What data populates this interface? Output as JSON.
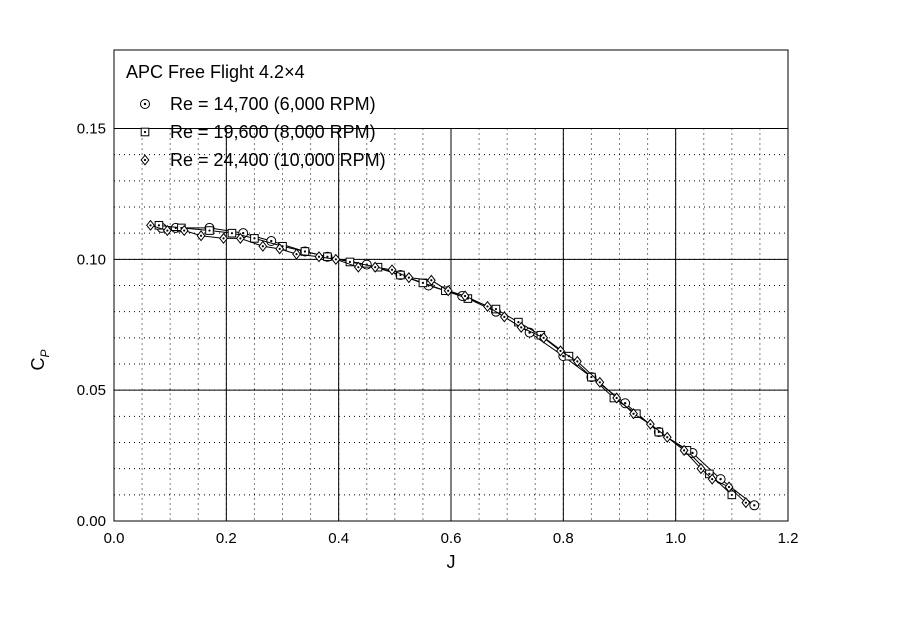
{
  "chart_data": {
    "type": "scatter",
    "title": "APC Free Flight 4.2×4",
    "xlabel": "J",
    "ylabel_main": "C",
    "ylabel_sub": "P",
    "xlim": [
      0.0,
      1.2
    ],
    "ylim": [
      0.0,
      0.18
    ],
    "x_ticks": [
      0.0,
      0.2,
      0.4,
      0.6,
      0.8,
      1.0,
      1.2
    ],
    "x_tick_labels": [
      "0.0",
      "0.2",
      "0.4",
      "0.6",
      "0.8",
      "1.0",
      "1.2"
    ],
    "y_ticks": [
      0.0,
      0.05,
      0.1,
      0.15
    ],
    "y_tick_labels": [
      "0.00",
      "0.05",
      "0.10",
      "0.15"
    ],
    "grid": true,
    "legend_position": "top",
    "series": [
      {
        "name": "Re = 14,700 (6,000 RPM)",
        "marker": "circle-dot",
        "x": [
          0.085,
          0.11,
          0.17,
          0.23,
          0.28,
          0.34,
          0.38,
          0.45,
          0.51,
          0.56,
          0.62,
          0.68,
          0.74,
          0.8,
          0.85,
          0.91,
          0.97,
          1.03,
          1.08,
          1.14
        ],
        "y": [
          0.112,
          0.112,
          0.112,
          0.11,
          0.107,
          0.103,
          0.101,
          0.098,
          0.094,
          0.09,
          0.086,
          0.08,
          0.072,
          0.063,
          0.055,
          0.045,
          0.034,
          0.026,
          0.016,
          0.006
        ]
      },
      {
        "name": "Re = 19,600 (8,000 RPM)",
        "marker": "square-dot",
        "x": [
          0.08,
          0.12,
          0.17,
          0.21,
          0.25,
          0.3,
          0.34,
          0.38,
          0.42,
          0.47,
          0.51,
          0.55,
          0.59,
          0.63,
          0.68,
          0.72,
          0.76,
          0.81,
          0.85,
          0.89,
          0.93,
          0.97,
          1.02,
          1.06,
          1.1
        ],
        "y": [
          0.113,
          0.112,
          0.111,
          0.11,
          0.108,
          0.105,
          0.103,
          0.101,
          0.099,
          0.097,
          0.094,
          0.091,
          0.088,
          0.085,
          0.081,
          0.076,
          0.071,
          0.063,
          0.055,
          0.047,
          0.041,
          0.034,
          0.027,
          0.018,
          0.01
        ]
      },
      {
        "name": "Re = 24,400 (10,000 RPM)",
        "marker": "diamond-dot",
        "x": [
          0.065,
          0.095,
          0.125,
          0.155,
          0.195,
          0.225,
          0.265,
          0.295,
          0.325,
          0.365,
          0.395,
          0.435,
          0.465,
          0.495,
          0.525,
          0.565,
          0.595,
          0.625,
          0.665,
          0.695,
          0.725,
          0.765,
          0.795,
          0.825,
          0.865,
          0.895,
          0.925,
          0.955,
          0.985,
          1.015,
          1.045,
          1.065,
          1.095,
          1.125
        ],
        "y": [
          0.113,
          0.111,
          0.111,
          0.109,
          0.108,
          0.108,
          0.105,
          0.104,
          0.102,
          0.101,
          0.1,
          0.097,
          0.097,
          0.096,
          0.093,
          0.092,
          0.088,
          0.086,
          0.082,
          0.078,
          0.074,
          0.07,
          0.065,
          0.061,
          0.053,
          0.047,
          0.041,
          0.037,
          0.032,
          0.027,
          0.02,
          0.016,
          0.013,
          0.007
        ]
      }
    ]
  }
}
